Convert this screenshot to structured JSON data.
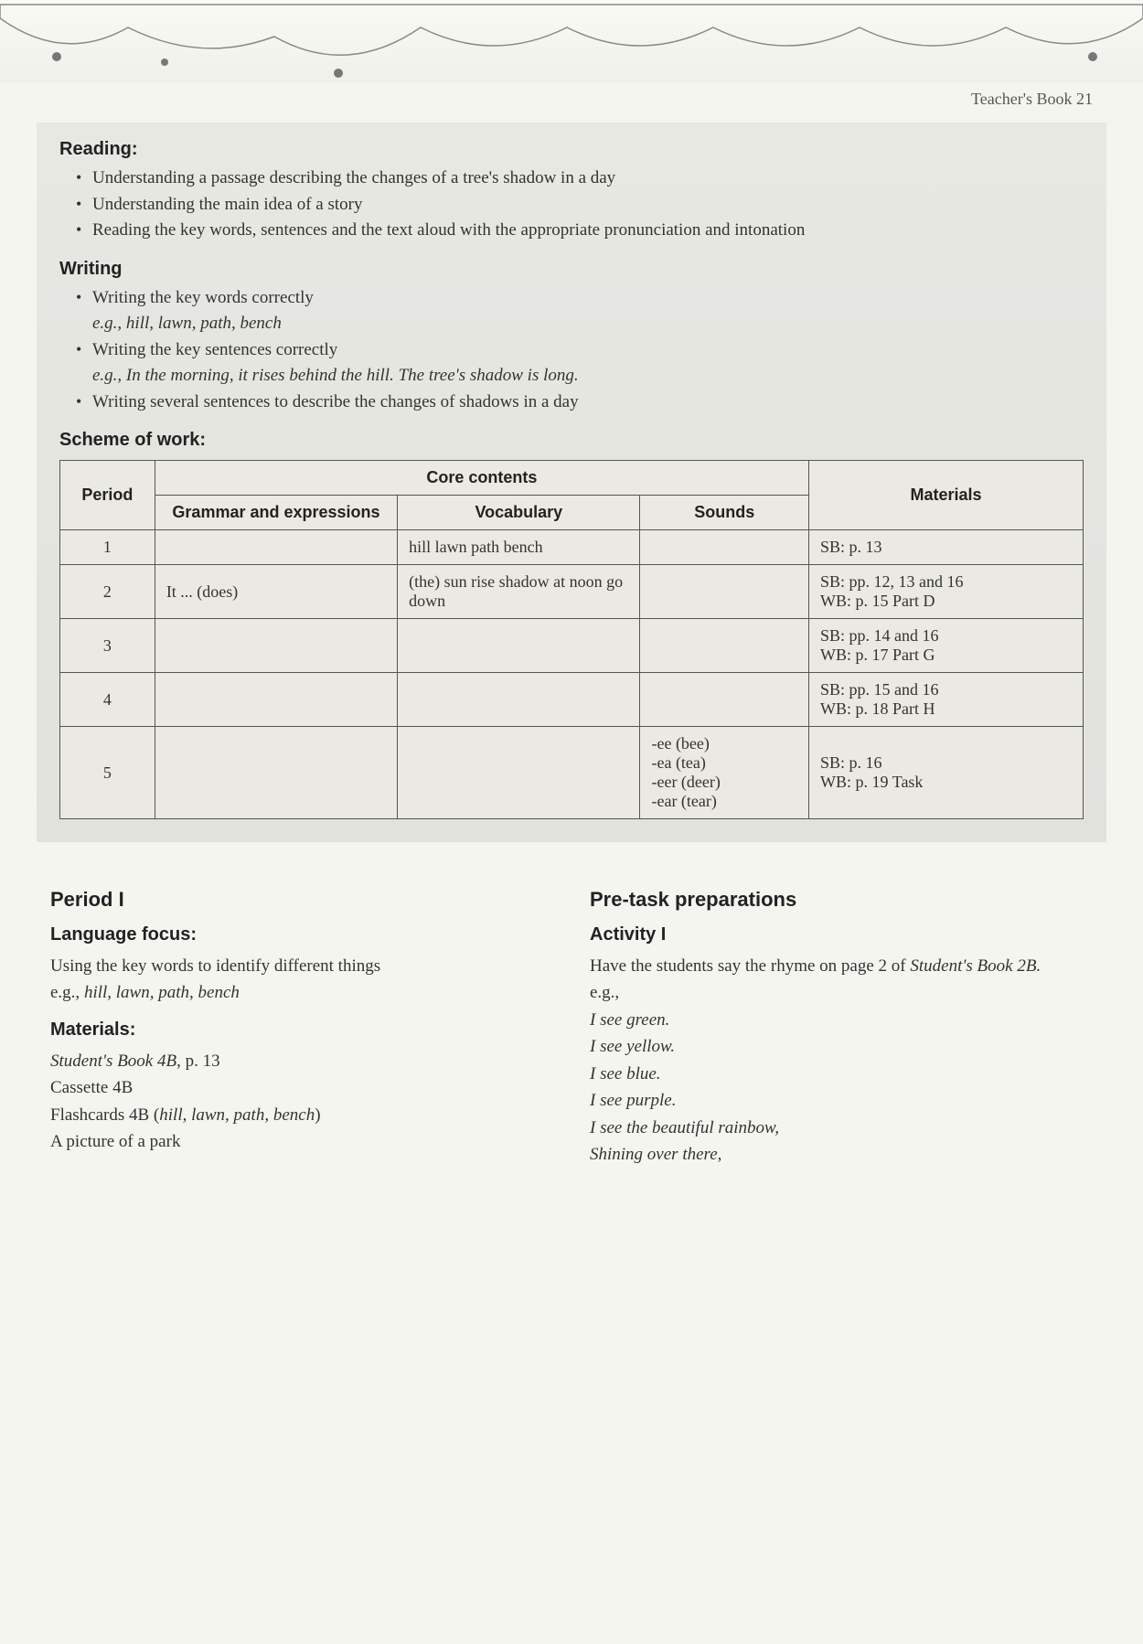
{
  "header": {
    "page_label": "Teacher's Book 21"
  },
  "reading": {
    "heading": "Reading:",
    "items": [
      "Understanding a passage describing the changes of a tree's shadow in a day",
      "Understanding the main idea of a story",
      "Reading the key words, sentences and the text aloud with the appropriate pronunciation and intonation"
    ]
  },
  "writing": {
    "heading": "Writing",
    "items": [
      {
        "text": "Writing the key words correctly",
        "sub": "e.g., hill, lawn, path, bench",
        "sub_italic": true
      },
      {
        "text": "Writing the key sentences correctly",
        "sub": "e.g., In the morning, it rises behind the hill. The tree's shadow is long.",
        "sub_italic": true
      },
      {
        "text": "Writing several sentences to describe the changes of shadows in a day",
        "sub": "",
        "sub_italic": false
      }
    ]
  },
  "scheme": {
    "heading": "Scheme of work:",
    "columns": {
      "period": "Period",
      "core": "Core contents",
      "grammar": "Grammar and expressions",
      "vocab": "Vocabulary",
      "sounds": "Sounds",
      "materials": "Materials"
    },
    "rows": [
      {
        "period": "1",
        "grammar": "",
        "vocab": "hill   lawn   path bench",
        "sounds": "",
        "materials": "SB: p. 13"
      },
      {
        "period": "2",
        "grammar": "It ... (does)",
        "vocab": "(the) sun   rise shadow   at noon go down",
        "sounds": "",
        "materials": "SB: pp. 12, 13 and 16\nWB: p. 15 Part D"
      },
      {
        "period": "3",
        "grammar": "",
        "vocab": "",
        "sounds": "",
        "materials": "SB: pp. 14 and 16\nWB: p. 17 Part G"
      },
      {
        "period": "4",
        "grammar": "",
        "vocab": "",
        "sounds": "",
        "materials": "SB: pp. 15 and 16\nWB: p. 18 Part H"
      },
      {
        "period": "5",
        "grammar": "",
        "vocab": "",
        "sounds": "-ee (bee)\n-ea (tea)\n-eer (deer)\n-ear (tear)",
        "materials": "SB: p. 16\nWB: p. 19 Task"
      }
    ]
  },
  "left_col": {
    "period_heading": "Period I",
    "lang_heading": "Language focus:",
    "lang_text": "Using the key words to identify different things",
    "lang_eg": "e.g., hill, lawn, path, bench",
    "mat_heading": "Materials:",
    "mat_lines": [
      "Student's Book 4B, p. 13",
      "Cassette 4B",
      "Flashcards 4B (hill, lawn, path, bench)",
      "A picture of a park"
    ]
  },
  "right_col": {
    "pretask_heading": "Pre-task preparations",
    "activity_heading": "Activity I",
    "intro1": "Have the students say the rhyme on page 2 of ",
    "intro2": "Student's Book 2B.",
    "eg_label": "e.g.,",
    "rhyme": [
      "I see green.",
      "I see yellow.",
      "I see blue.",
      "I see purple.",
      "I see the beautiful rainbow,",
      "Shining over there,"
    ]
  },
  "style": {
    "background_color": "#f5f5f0",
    "box_bg": "#e8e8e3",
    "text_color": "#333",
    "heading_font": "Arial, sans-serif",
    "body_font": "Georgia, serif",
    "border_color": "#555"
  }
}
